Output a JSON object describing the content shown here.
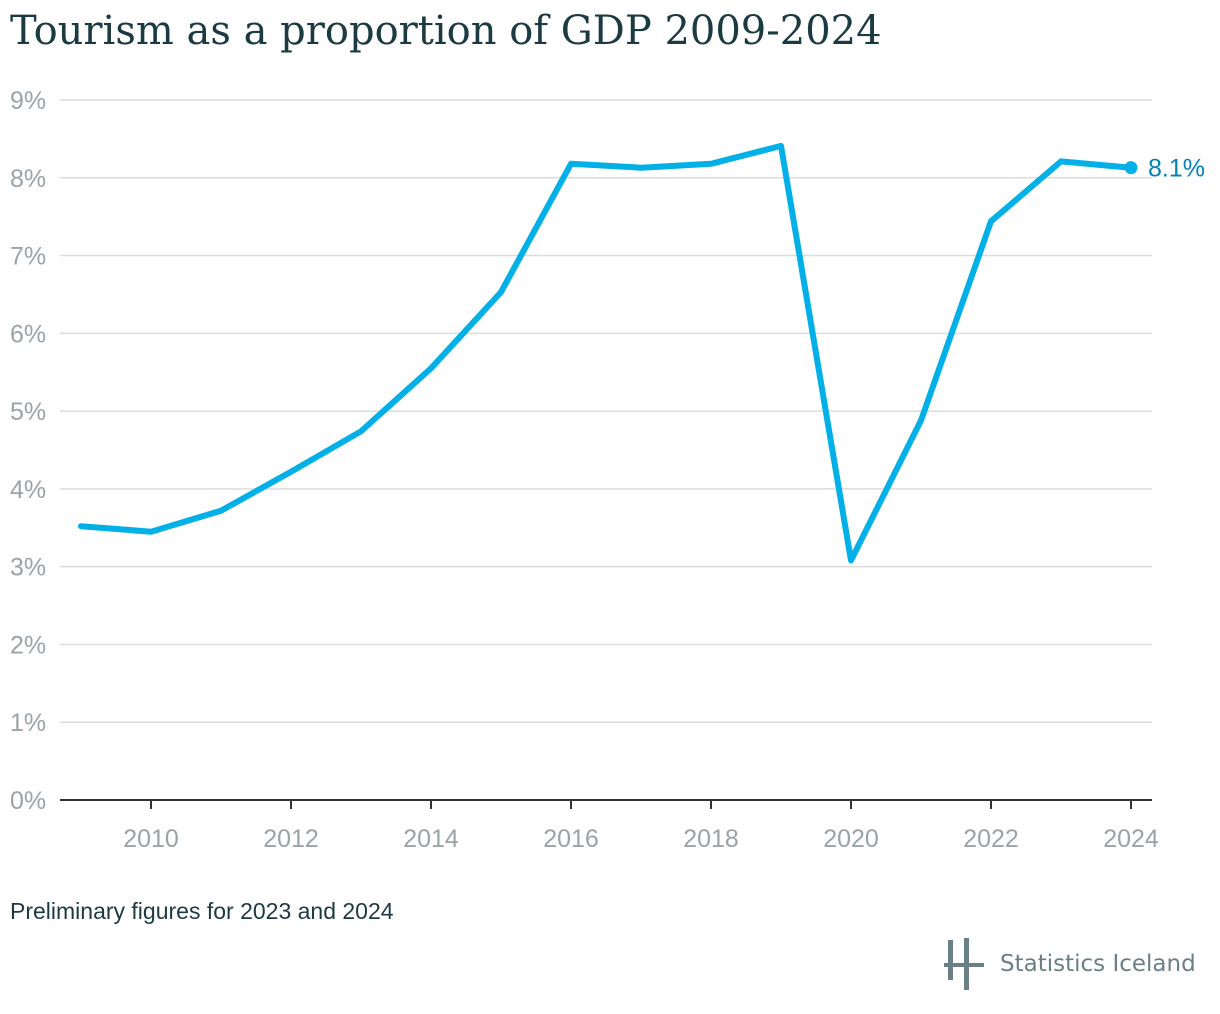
{
  "title": "Tourism as a proportion of GDP 2009-2024",
  "footnote": "Preliminary figures for 2023 and 2024",
  "brand": "Statistics Iceland",
  "colors": {
    "line": "#00b0e6",
    "last_label": "#0083b8",
    "grid": "#dcdcdc",
    "axis": "#333333",
    "tick_text": "#9aa3a7",
    "title": "#1b3a42",
    "logo": "#6b7f86"
  },
  "chart_data": {
    "type": "line",
    "title": "Tourism as a proportion of GDP 2009-2024",
    "x": [
      2009,
      2010,
      2011,
      2012,
      2013,
      2014,
      2015,
      2016,
      2017,
      2018,
      2019,
      2020,
      2021,
      2022,
      2023,
      2024
    ],
    "series": [
      {
        "values": [
          3.52,
          3.45,
          3.72,
          4.22,
          4.74,
          5.55,
          6.53,
          8.18,
          8.13,
          8.18,
          8.41,
          3.08,
          4.88,
          7.44,
          8.21,
          8.13
        ]
      }
    ],
    "xlabel": "",
    "ylabel": "",
    "ylim": [
      0,
      9
    ],
    "xlim": [
      2008.7,
      2024.3
    ],
    "yticks": [
      "0%",
      "1%",
      "2%",
      "3%",
      "4%",
      "5%",
      "6%",
      "7%",
      "8%",
      "9%"
    ],
    "xticks": [
      "2010",
      "2012",
      "2014",
      "2016",
      "2018",
      "2020",
      "2022",
      "2024"
    ],
    "last_value_label": "8.1%",
    "grid": "horizontal",
    "legend": "none"
  }
}
